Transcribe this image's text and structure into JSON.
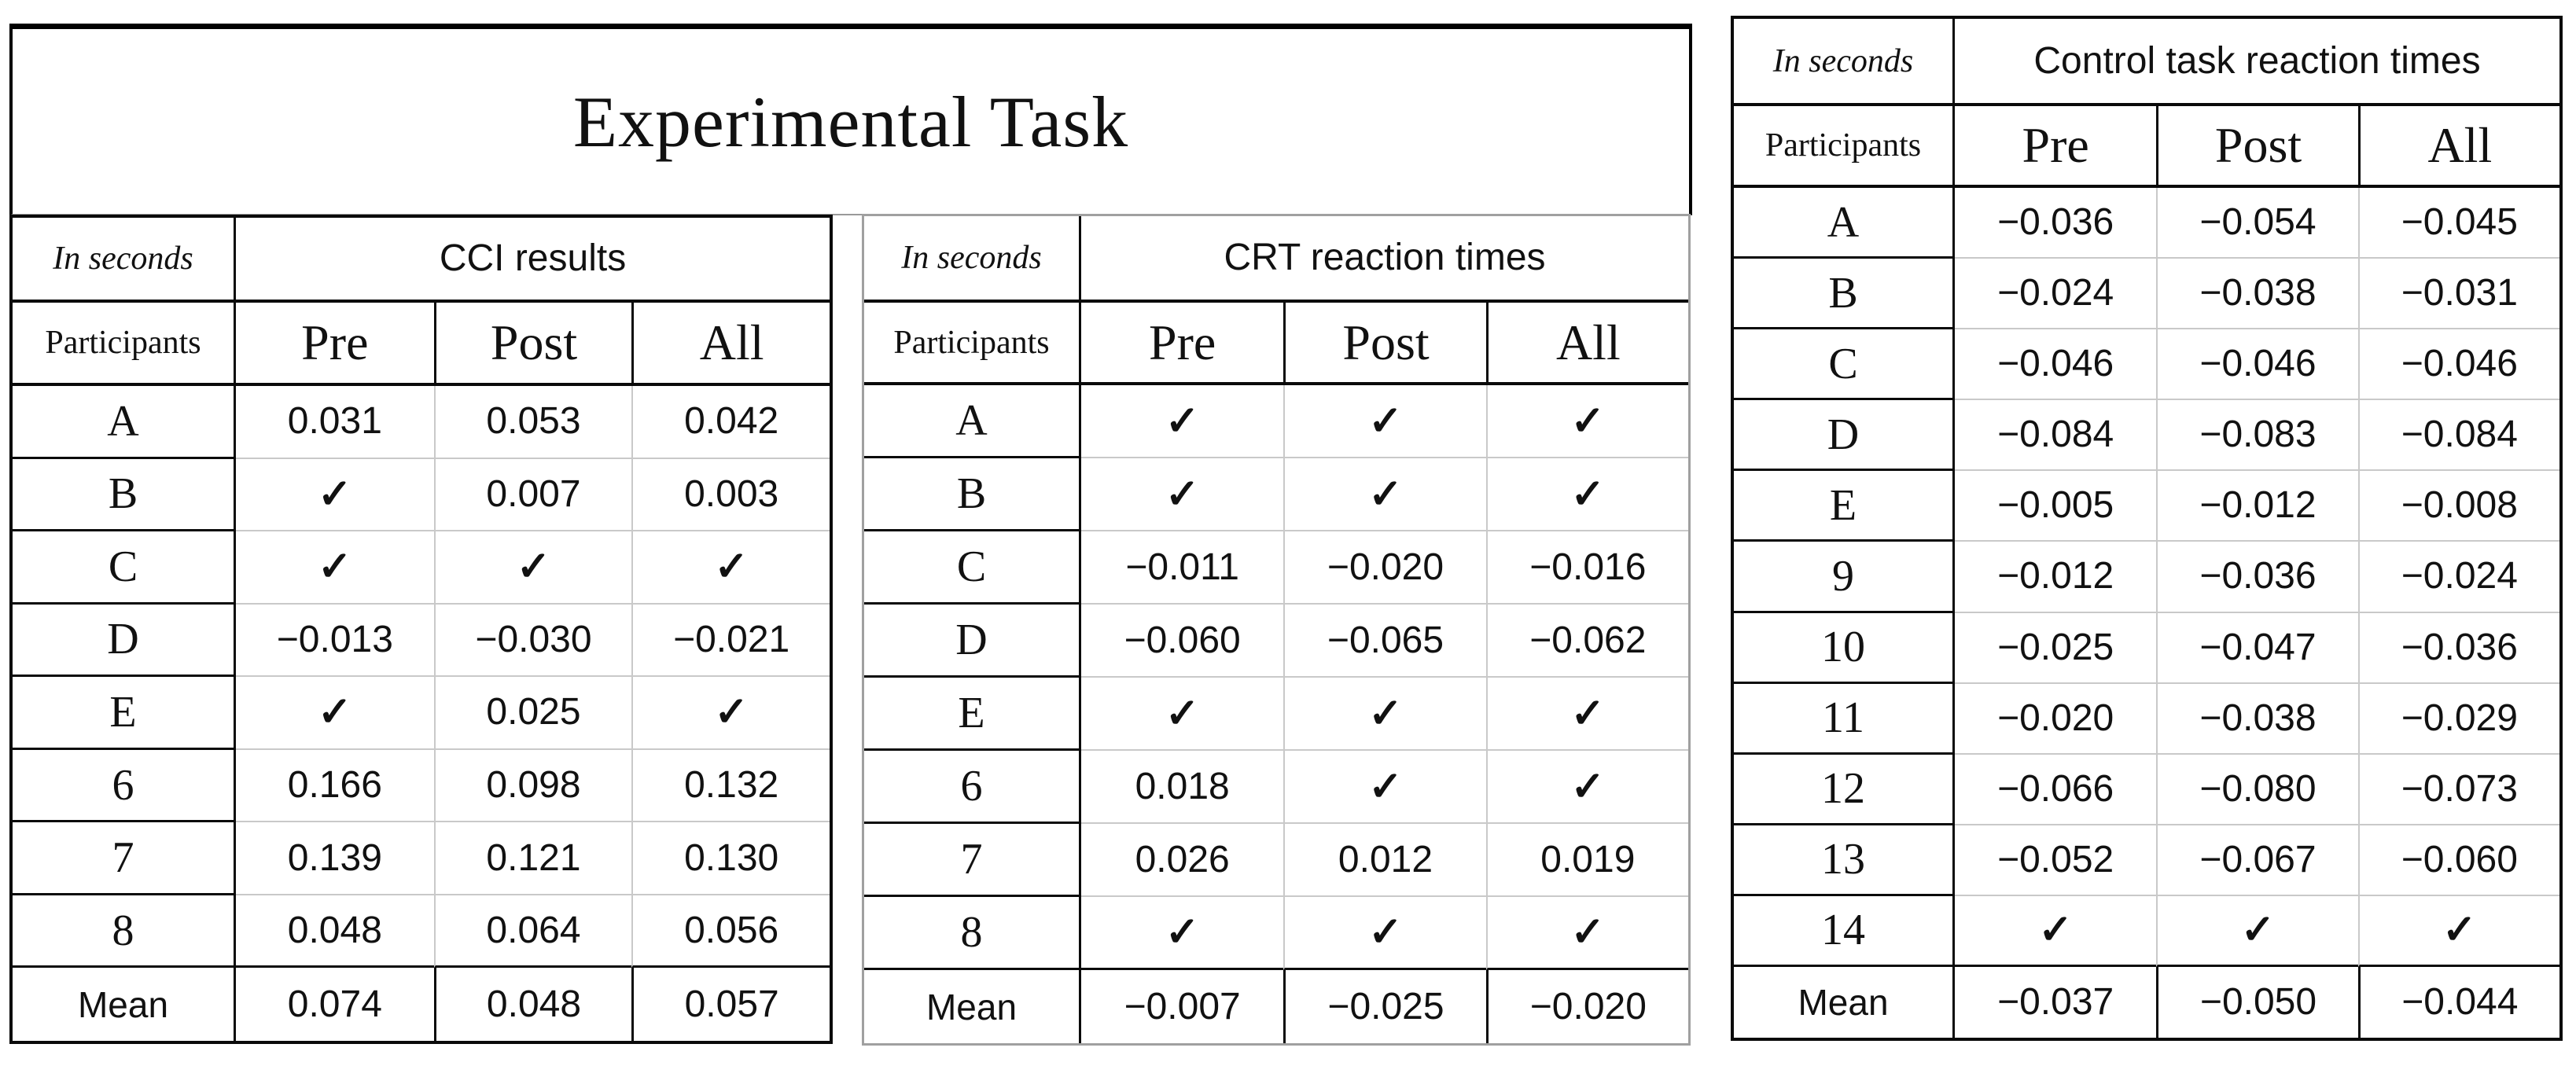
{
  "title": "Experimental Task",
  "check_glyph": "✓",
  "colors": {
    "background": "#ffffff",
    "text": "#111111",
    "strong_grid": "#0a0a0a",
    "light_grid": "#c9c9c9",
    "middle_table_border": "#a0a0a0"
  },
  "tables": [
    {
      "corner_label": "In seconds",
      "title": "CCI results",
      "row_header": "Participants",
      "columns": [
        "Pre",
        "Post",
        "All"
      ],
      "rows": [
        {
          "label": "A",
          "values": [
            "0.031",
            "0.053",
            "0.042"
          ]
        },
        {
          "label": "B",
          "values": [
            "✓",
            "0.007",
            "0.003"
          ]
        },
        {
          "label": "C",
          "values": [
            "✓",
            "✓",
            "✓"
          ]
        },
        {
          "label": "D",
          "values": [
            "−0.013",
            "−0.030",
            "−0.021"
          ]
        },
        {
          "label": "E",
          "values": [
            "✓",
            "0.025",
            "✓"
          ]
        },
        {
          "label": "6",
          "values": [
            "0.166",
            "0.098",
            "0.132"
          ]
        },
        {
          "label": "7",
          "values": [
            "0.139",
            "0.121",
            "0.130"
          ]
        },
        {
          "label": "8",
          "values": [
            "0.048",
            "0.064",
            "0.056"
          ]
        },
        {
          "label": "Mean",
          "is_mean": true,
          "values": [
            "0.074",
            "0.048",
            "0.057"
          ]
        }
      ]
    },
    {
      "corner_label": "In seconds",
      "title": "CRT reaction times",
      "row_header": "Participants",
      "columns": [
        "Pre",
        "Post",
        "All"
      ],
      "rows": [
        {
          "label": "A",
          "values": [
            "✓",
            "✓",
            "✓"
          ]
        },
        {
          "label": "B",
          "values": [
            "✓",
            "✓",
            "✓"
          ]
        },
        {
          "label": "C",
          "values": [
            "−0.011",
            "−0.020",
            "−0.016"
          ]
        },
        {
          "label": "D",
          "values": [
            "−0.060",
            "−0.065",
            "−0.062"
          ]
        },
        {
          "label": "E",
          "values": [
            "✓",
            "✓",
            "✓"
          ]
        },
        {
          "label": "6",
          "values": [
            "0.018",
            "✓",
            "✓"
          ]
        },
        {
          "label": "7",
          "values": [
            "0.026",
            "0.012",
            "0.019"
          ]
        },
        {
          "label": "8",
          "values": [
            "✓",
            "✓",
            "✓"
          ]
        },
        {
          "label": "Mean",
          "is_mean": true,
          "values": [
            "−0.007",
            "−0.025",
            "−0.020"
          ]
        }
      ]
    },
    {
      "corner_label": "In seconds",
      "title": "Control task reaction times",
      "row_header": "Participants",
      "columns": [
        "Pre",
        "Post",
        "All"
      ],
      "rows": [
        {
          "label": "A",
          "values": [
            "−0.036",
            "−0.054",
            "−0.045"
          ]
        },
        {
          "label": "B",
          "values": [
            "−0.024",
            "−0.038",
            "−0.031"
          ]
        },
        {
          "label": "C",
          "values": [
            "−0.046",
            "−0.046",
            "−0.046"
          ]
        },
        {
          "label": "D",
          "values": [
            "−0.084",
            "−0.083",
            "−0.084"
          ]
        },
        {
          "label": "E",
          "values": [
            "−0.005",
            "−0.012",
            "−0.008"
          ]
        },
        {
          "label": "9",
          "values": [
            "−0.012",
            "−0.036",
            "−0.024"
          ]
        },
        {
          "label": "10",
          "values": [
            "−0.025",
            "−0.047",
            "−0.036"
          ]
        },
        {
          "label": "11",
          "values": [
            "−0.020",
            "−0.038",
            "−0.029"
          ]
        },
        {
          "label": "12",
          "values": [
            "−0.066",
            "−0.080",
            "−0.073"
          ]
        },
        {
          "label": "13",
          "values": [
            "−0.052",
            "−0.067",
            "−0.060"
          ]
        },
        {
          "label": "14",
          "values": [
            "✓",
            "✓",
            "✓"
          ]
        },
        {
          "label": "Mean",
          "is_mean": true,
          "values": [
            "−0.037",
            "−0.050",
            "−0.044"
          ]
        }
      ]
    }
  ]
}
